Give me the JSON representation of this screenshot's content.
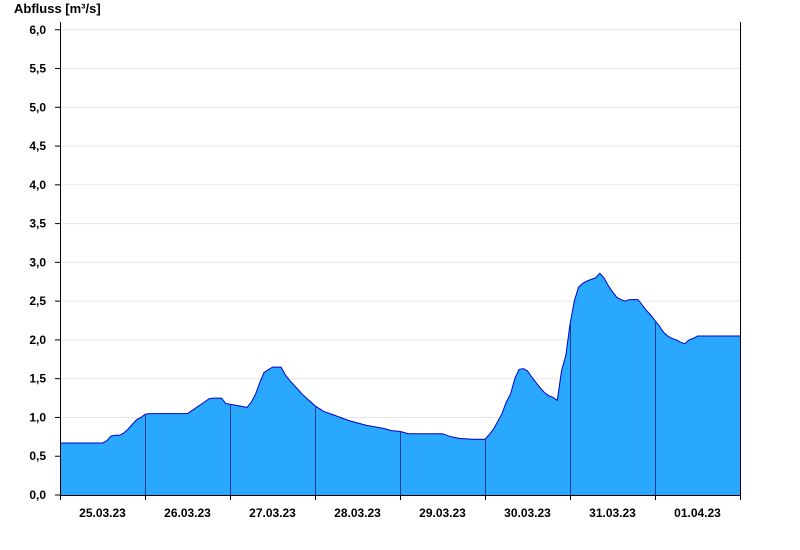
{
  "chart_data": {
    "type": "area",
    "title": "",
    "xlabel": "",
    "ylabel": "Abfluss [m³/s]",
    "ylim": [
      0,
      6.1
    ],
    "yticks": [
      "0,0",
      "0,5",
      "1,0",
      "1,5",
      "2,0",
      "2,5",
      "3,0",
      "3,5",
      "4,0",
      "4,5",
      "5,0",
      "5,5",
      "6,0"
    ],
    "ytick_values": [
      0,
      0.5,
      1,
      1.5,
      2,
      2.5,
      3,
      3.5,
      4,
      4.5,
      5,
      5.5,
      6
    ],
    "xlim": [
      0,
      8
    ],
    "xticks": [
      "25.03.23",
      "26.03.23",
      "27.03.23",
      "28.03.23",
      "29.03.23",
      "30.03.23",
      "31.03.23",
      "01.04.23"
    ],
    "day_boundaries": [
      1,
      2,
      3,
      4,
      5,
      6,
      7
    ],
    "grid": "horizontal",
    "fill_color": "#2aa8ff",
    "line_color": "#0000cc",
    "series": [
      {
        "x": [
          0,
          0.5,
          0.55,
          0.6,
          0.65,
          0.7,
          0.75,
          0.8,
          0.9,
          0.95,
          1.0,
          1.05,
          1.1,
          1.2,
          1.5,
          1.7,
          1.75,
          1.8,
          1.85,
          1.9,
          1.95,
          2.0,
          2.1,
          2.2,
          2.25,
          2.3,
          2.35,
          2.4,
          2.5,
          2.55,
          2.6,
          2.65,
          2.7,
          2.75,
          2.8,
          2.85,
          2.9,
          3.0,
          3.1,
          3.2,
          3.3,
          3.4,
          3.5,
          3.6,
          3.7,
          3.8,
          3.9,
          4.0,
          4.1,
          4.3,
          4.5,
          4.6,
          4.7,
          4.85,
          5.0,
          5.05,
          5.1,
          5.2,
          5.25,
          5.3,
          5.35,
          5.4,
          5.45,
          5.5,
          5.55,
          5.6,
          5.65,
          5.7,
          5.75,
          5.8,
          5.85,
          5.9,
          5.95,
          6.0,
          6.05,
          6.1,
          6.15,
          6.2,
          6.25,
          6.3,
          6.35,
          6.4,
          6.45,
          6.5,
          6.55,
          6.6,
          6.65,
          6.7,
          6.75,
          6.8,
          6.85,
          6.9,
          6.95,
          7.0,
          7.05,
          7.1,
          7.15,
          7.2,
          7.25,
          7.3,
          7.35,
          7.4,
          7.45,
          7.5,
          7.55,
          7.6,
          7.65,
          7.7,
          7.75,
          7.8,
          7.85,
          7.9,
          7.95,
          8.0
        ],
        "y": [
          0.67,
          0.67,
          0.7,
          0.76,
          0.77,
          0.77,
          0.8,
          0.85,
          0.97,
          1.0,
          1.04,
          1.05,
          1.05,
          1.05,
          1.05,
          1.2,
          1.24,
          1.25,
          1.25,
          1.25,
          1.18,
          1.17,
          1.15,
          1.13,
          1.2,
          1.3,
          1.45,
          1.58,
          1.65,
          1.65,
          1.65,
          1.55,
          1.48,
          1.42,
          1.36,
          1.3,
          1.25,
          1.15,
          1.08,
          1.04,
          1.0,
          0.96,
          0.93,
          0.9,
          0.88,
          0.86,
          0.83,
          0.82,
          0.79,
          0.79,
          0.79,
          0.75,
          0.73,
          0.72,
          0.72,
          0.78,
          0.85,
          1.05,
          1.2,
          1.3,
          1.5,
          1.62,
          1.63,
          1.6,
          1.52,
          1.45,
          1.38,
          1.32,
          1.28,
          1.26,
          1.22,
          1.6,
          1.8,
          2.2,
          2.5,
          2.68,
          2.73,
          2.76,
          2.78,
          2.8,
          2.86,
          2.8,
          2.7,
          2.62,
          2.55,
          2.52,
          2.5,
          2.52,
          2.52,
          2.52,
          2.45,
          2.38,
          2.32,
          2.25,
          2.18,
          2.1,
          2.05,
          2.02,
          2.0,
          1.97,
          1.95,
          2.0,
          2.02,
          2.05,
          2.05,
          2.05,
          2.05,
          2.05,
          2.05,
          2.05,
          2.05,
          2.05,
          2.05,
          2.05
        ]
      }
    ]
  }
}
